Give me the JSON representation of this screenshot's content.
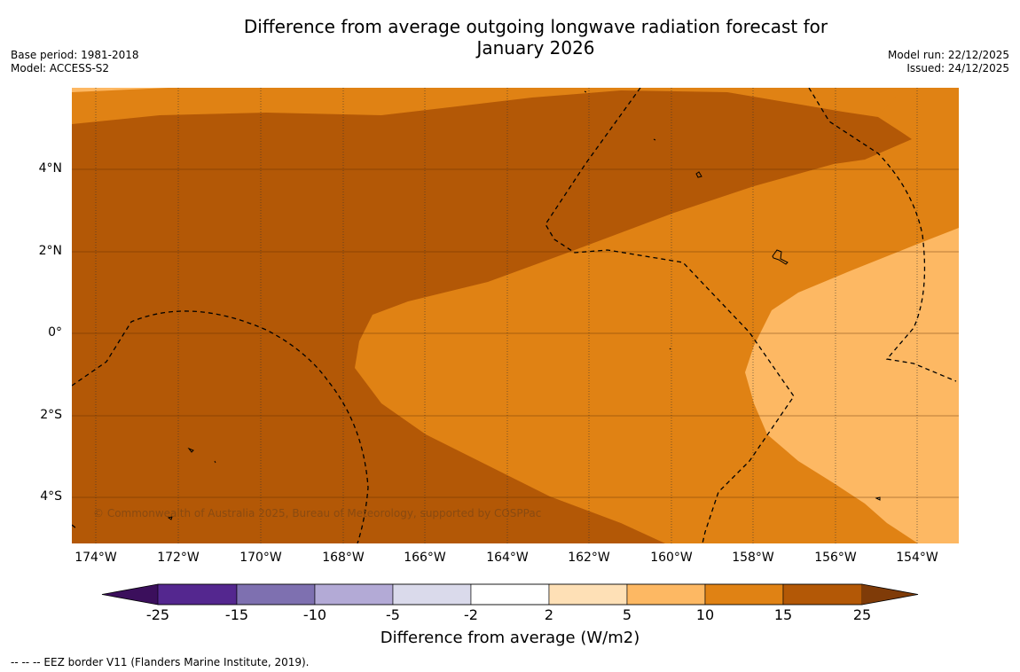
{
  "title": "Difference from average outgoing longwave radiation forecast for",
  "title_line2": "January 2026",
  "meta_left": {
    "base_period": "Base period: 1981-2018",
    "model": "Model: ACCESS-S2"
  },
  "meta_right": {
    "model_run": "Model run: 22/12/2025",
    "issued": "Issued: 24/12/2025"
  },
  "credit": "© Commonwealth of Australia 2025, Bureau of Meteorology, supported by COSPPac",
  "latitude_labels": [
    "4°N",
    "2°N",
    "0°",
    "2°S",
    "4°S"
  ],
  "longitude_labels": [
    "174°W",
    "172°W",
    "170°W",
    "168°W",
    "166°W",
    "164°W",
    "162°W",
    "160°W",
    "158°W",
    "156°W",
    "154°W"
  ],
  "colorbar": {
    "ticks": [
      "-25",
      "-15",
      "-10",
      "-5",
      "-2",
      "2",
      "5",
      "10",
      "15",
      "25"
    ],
    "title": "Difference from average (W/m2)",
    "colors": [
      "#3b0f5c",
      "#54278f",
      "#7e70b0",
      "#b3aad6",
      "#dadaeb",
      "#ffffff",
      "#fee0b6",
      "#fdb863",
      "#e08214",
      "#b35806",
      "#7f3b08"
    ]
  },
  "map_colors": {
    "class_15_25": "#b35806",
    "class_10_15": "#e08214",
    "class_5_10": "#fdb863",
    "class_2_5": "#fee0b6"
  },
  "footer": "--  --  -- EEZ border V11 (Flanders Marine Institute, 2019)."
}
